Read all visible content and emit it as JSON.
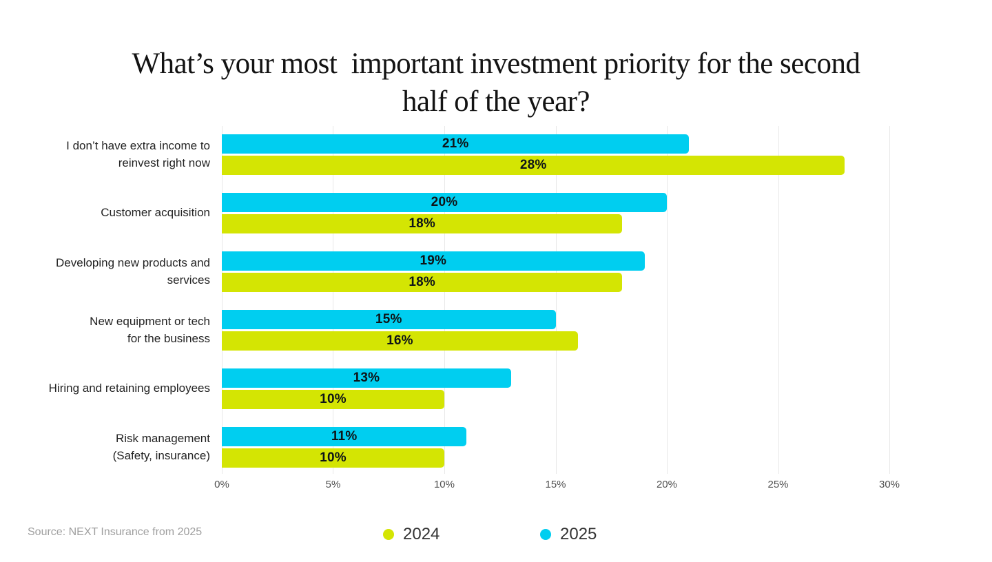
{
  "title": "What’s your most  important investment priority for the second\nhalf of the year?",
  "source_text": "Source: NEXT Insurance from 2025",
  "colors": {
    "series_2024": "#D4E503",
    "series_2025": "#00CEF0",
    "gridline": "#E8E8E8",
    "value_label": "#0E1418"
  },
  "legend": {
    "items": [
      {
        "label": "2024",
        "color": "#D4E503"
      },
      {
        "label": "2025",
        "color": "#00CEF0"
      }
    ]
  },
  "chart_data": {
    "type": "bar",
    "orientation": "horizontal",
    "title": "What’s your most important investment priority for the second half of the year?",
    "categories": [
      "I don’t have extra income to\nreinvest right now",
      "Customer acquisition",
      "Developing new products and\nservices",
      "New equipment or tech\nfor the business",
      "Hiring and retaining employees",
      "Risk management\n(Safety, insurance)"
    ],
    "series": [
      {
        "name": "2025",
        "color": "#00CEF0",
        "values": [
          21,
          20,
          19,
          15,
          13,
          11
        ]
      },
      {
        "name": "2024",
        "color": "#D4E503",
        "values": [
          28,
          18,
          18,
          16,
          10,
          10
        ]
      }
    ],
    "value_suffix": "%",
    "xlim": [
      0,
      30
    ],
    "xticks": [
      "0%",
      "5%",
      "10%",
      "15%",
      "20%",
      "25%",
      "30%"
    ],
    "grid": "vertical",
    "legend_position": "bottom",
    "bar_value_labels": "centered"
  }
}
